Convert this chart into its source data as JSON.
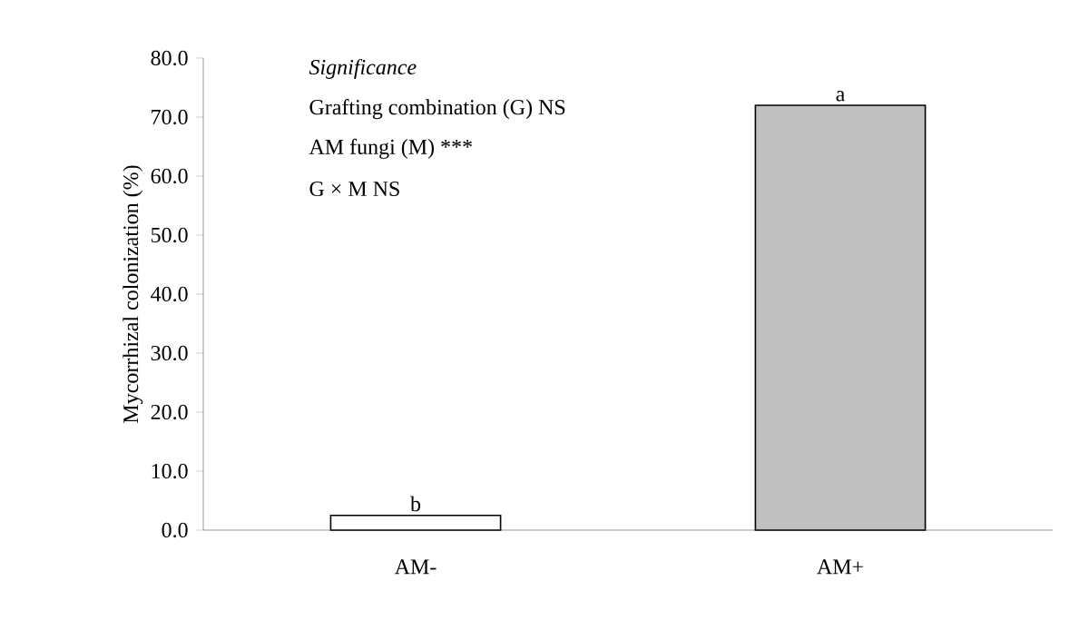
{
  "chart_data": {
    "type": "bar",
    "ylabel": "Mycorrhizal colonization (%)",
    "categories": [
      "AM-",
      "AM+"
    ],
    "values": [
      2.5,
      72
    ],
    "colors": [
      "#ffffff",
      "#c0c0c0"
    ],
    "ylim": [
      0,
      80
    ],
    "yticks": [
      {
        "value": 0,
        "label": "0.0"
      },
      {
        "value": 10,
        "label": "10.0"
      },
      {
        "value": 20,
        "label": "20.0"
      },
      {
        "value": 30,
        "label": "30.0"
      },
      {
        "value": 40,
        "label": "40.0"
      },
      {
        "value": 50,
        "label": "50.0"
      },
      {
        "value": 60,
        "label": "60.0"
      },
      {
        "value": 70,
        "label": "70.0"
      },
      {
        "value": 80,
        "label": "80.0"
      }
    ],
    "annotations": [
      "Significance",
      "Grafting combination (G) NS",
      "AM fungi (M) ***",
      "G × M NS",
      {
        "text": "b",
        "x": "AM-",
        "y": 2.5
      },
      {
        "text": "a",
        "x": "AM+",
        "y": 72
      }
    ]
  }
}
